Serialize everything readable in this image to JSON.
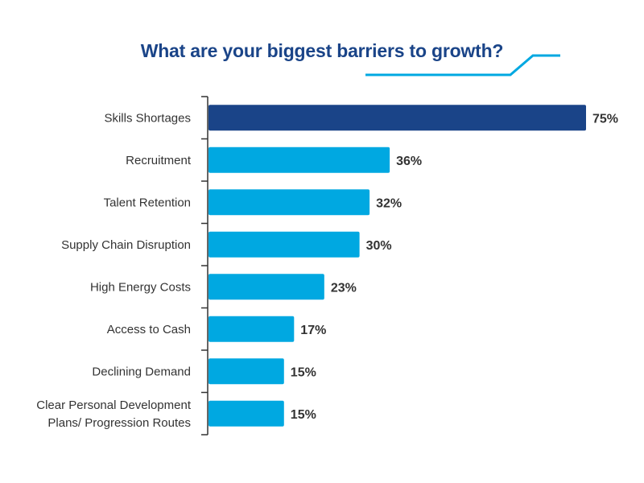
{
  "chart_data": {
    "type": "bar",
    "orientation": "horizontal",
    "title": "What are your biggest barriers to growth?",
    "categories": [
      [
        "Skills Shortages"
      ],
      [
        "Recruitment"
      ],
      [
        "Talent Retention"
      ],
      [
        "Supply Chain Disruption"
      ],
      [
        "High Energy Costs"
      ],
      [
        "Access to Cash"
      ],
      [
        "Declining Demand"
      ],
      [
        "Clear Personal Development",
        "Plans/ Progression Routes"
      ]
    ],
    "values": [
      75,
      36,
      32,
      30,
      23,
      17,
      15,
      15
    ],
    "value_labels": [
      "75%",
      "36%",
      "32%",
      "30%",
      "23%",
      "17%",
      "15%",
      "15%"
    ],
    "unit": "%",
    "highlight_index": 0,
    "colors": {
      "highlight": "#1a4488",
      "default": "#00a8e1",
      "accent_line": "#00a8e1",
      "title": "#1a4488",
      "axis": "#333333"
    },
    "xlim": [
      0,
      75
    ],
    "grid": false,
    "legend": "none"
  }
}
